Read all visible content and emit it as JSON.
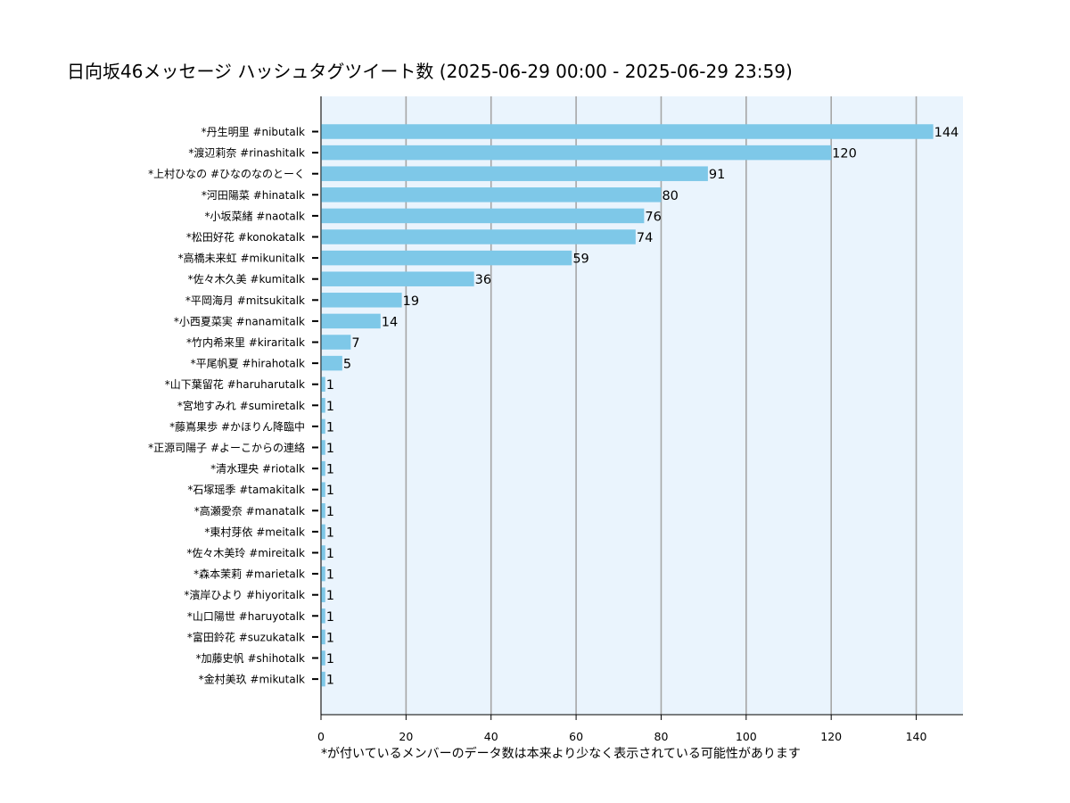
{
  "chart_data": {
    "type": "bar",
    "orientation": "horizontal",
    "title": "日向坂46メッセージ ハッシュタグツイート数 (2025-06-29 00:00 - 2025-06-29 23:59)",
    "xlabel": "",
    "ylabel": "",
    "note": "*が付いているメンバーのデータ数は本来より少なく表示されている可能性があります",
    "xlim": [
      0,
      151
    ],
    "xticks": [
      0,
      20,
      40,
      60,
      80,
      100,
      120,
      140
    ],
    "grid": "x",
    "bar_color": "#7ec8e8",
    "plot_background": "#eaf4fd",
    "grid_color": "#a6a6a6",
    "categories": [
      "*丹生明里 #nibutalk",
      "*渡辺莉奈 #rinashitalk",
      "*上村ひなの #ひなのなのとーく",
      "*河田陽菜 #hinatalk",
      "*小坂菜緒 #naotalk",
      "*松田好花 #konokatalk",
      "*高橋未来虹 #mikunitalk",
      "*佐々木久美 #kumitalk",
      "*平岡海月 #mitsukitalk",
      "*小西夏菜実 #nanamitalk",
      "*竹内希来里 #kiraritalk",
      "*平尾帆夏 #hirahotalk",
      "*山下葉留花 #haruharutalk",
      "*宮地すみれ #sumiretalk",
      "*藤嶌果歩 #かほりん降臨中",
      "*正源司陽子 #よーこからの連絡",
      "*清水理央 #riotalk",
      "*石塚瑶季 #tamakitalk",
      "*高瀬愛奈 #manatalk",
      "*東村芽依 #meitalk",
      "*佐々木美玲 #mireitalk",
      "*森本茉莉 #marietalk",
      "*濱岸ひより #hiyoritalk",
      "*山口陽世 #haruyotalk",
      "*富田鈴花 #suzukatalk",
      "*加藤史帆 #shihotalk",
      "*金村美玖 #mikutalk"
    ],
    "values": [
      144,
      120,
      91,
      80,
      76,
      74,
      59,
      36,
      19,
      14,
      7,
      5,
      1,
      1,
      1,
      1,
      1,
      1,
      1,
      1,
      1,
      1,
      1,
      1,
      1,
      1,
      1
    ]
  }
}
